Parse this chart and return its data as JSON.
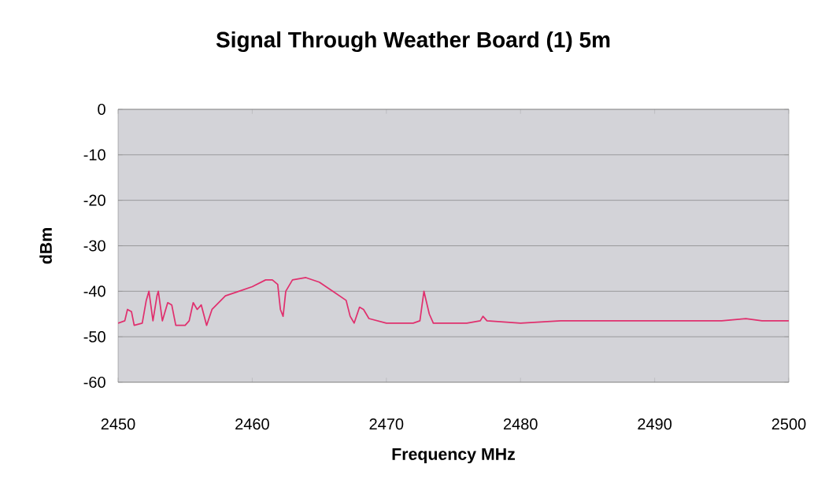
{
  "chart_data": {
    "type": "line",
    "title": "Signal Through Weather Board (1) 5m",
    "xlabel": "Frequency MHz",
    "ylabel": "dBm",
    "xlim": [
      2450,
      2500
    ],
    "ylim": [
      -60,
      0
    ],
    "xticks": [
      2450,
      2460,
      2470,
      2480,
      2490,
      2500
    ],
    "yticks": [
      -60,
      -50,
      -40,
      -30,
      -20,
      -10,
      0
    ],
    "grid": "y",
    "marker": "none",
    "line_style": "solid",
    "series": [
      {
        "color": "#e0306e",
        "x": [
          2450,
          2450.5,
          2450.7,
          2451,
          2451.2,
          2451.8,
          2452.1,
          2452.3,
          2452.6,
          2452.9,
          2453.0,
          2453.3,
          2453.7,
          2454,
          2454.3,
          2455,
          2455.3,
          2455.6,
          2455.9,
          2456.2,
          2456.6,
          2457,
          2458,
          2459,
          2460,
          2461,
          2461.5,
          2461.9,
          2462.1,
          2462.3,
          2462.5,
          2463,
          2464,
          2465,
          2466,
          2467,
          2467.3,
          2467.6,
          2468,
          2468.3,
          2468.7,
          2470,
          2471,
          2472,
          2472.5,
          2472.8,
          2473.2,
          2473.5,
          2475,
          2476,
          2477,
          2477.2,
          2477.5,
          2480,
          2483,
          2486,
          2487,
          2490,
          2493,
          2495,
          2496.8,
          2498,
          2500
        ],
        "values": [
          -47,
          -46.5,
          -44,
          -44.5,
          -47.5,
          -47,
          -42,
          -40,
          -46.5,
          -41,
          -40,
          -46.5,
          -42.5,
          -43,
          -47.5,
          -47.5,
          -46.5,
          -42.5,
          -44,
          -43,
          -47.5,
          -44,
          -41,
          -40,
          -39,
          -37.5,
          -37.5,
          -38.5,
          -44,
          -45.5,
          -40,
          -37.5,
          -37,
          -38,
          -40,
          -42,
          -45.5,
          -47,
          -43.5,
          -44,
          -46,
          -47,
          -47,
          -47,
          -46.5,
          -40,
          -45,
          -47,
          -47,
          -47,
          -46.5,
          -45.5,
          -46.5,
          -47,
          -46.5,
          -46.5,
          -46.5,
          -46.5,
          -46.5,
          -46.5,
          -46,
          -46.5,
          -46.5
        ]
      }
    ]
  }
}
